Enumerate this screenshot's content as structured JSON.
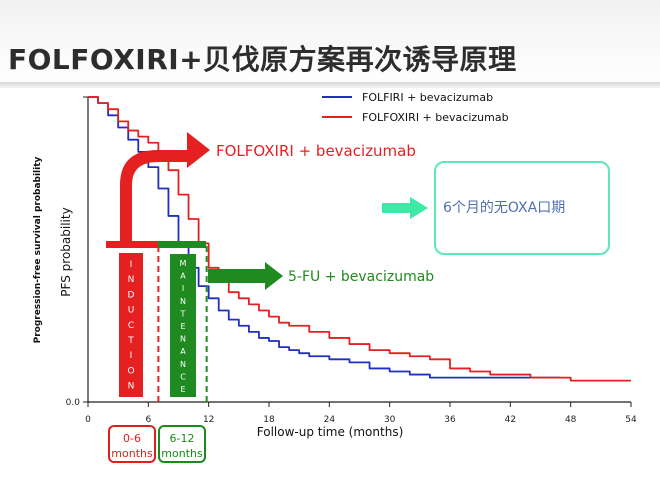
{
  "slide": {
    "title": "FOLFOXIRI+贝伐原方案再次诱导原理"
  },
  "chart_data": {
    "type": "line",
    "xlabel": "Follow-up time (months)",
    "ylabel": "PFS probability",
    "ylabel_inner": "Progression-free survival probability",
    "xlim": [
      0,
      54
    ],
    "ylim": [
      0,
      1
    ],
    "xticks": [
      0,
      6,
      12,
      18,
      24,
      30,
      36,
      42,
      48,
      54
    ],
    "yticks": [
      {
        "value": 0,
        "label": "0.0"
      },
      {
        "value": 1,
        "label": ""
      }
    ],
    "grid": false,
    "legend_position": "top-right",
    "series": [
      {
        "name": "FOLFIRI + bevacizumab",
        "color": "#1f2fbf",
        "x": [
          0,
          1,
          2,
          3,
          4,
          5,
          6,
          7,
          8,
          9,
          10,
          11,
          12,
          13,
          14,
          15,
          16,
          17,
          18,
          19,
          20,
          21,
          22,
          24,
          26,
          28,
          30,
          32,
          34,
          36,
          38,
          40,
          42,
          44,
          47
        ],
        "y": [
          1.0,
          0.98,
          0.94,
          0.9,
          0.86,
          0.82,
          0.77,
          0.7,
          0.61,
          0.52,
          0.44,
          0.38,
          0.34,
          0.3,
          0.27,
          0.25,
          0.23,
          0.21,
          0.2,
          0.18,
          0.17,
          0.16,
          0.15,
          0.14,
          0.13,
          0.11,
          0.1,
          0.09,
          0.08,
          0.08,
          0.08,
          0.08,
          0.08,
          0.08,
          0.08
        ]
      },
      {
        "name": "FOLFOXIRI + bevacizumab",
        "color": "#e52020",
        "x": [
          0,
          1,
          2,
          3,
          4,
          5,
          6,
          7,
          8,
          9,
          10,
          11,
          12,
          13,
          14,
          15,
          16,
          17,
          18,
          19,
          20,
          22,
          24,
          26,
          28,
          30,
          32,
          34,
          36,
          38,
          40,
          44,
          48,
          52,
          54
        ],
        "y": [
          1.0,
          0.98,
          0.96,
          0.92,
          0.89,
          0.87,
          0.85,
          0.82,
          0.76,
          0.68,
          0.6,
          0.52,
          0.44,
          0.4,
          0.36,
          0.34,
          0.32,
          0.3,
          0.28,
          0.26,
          0.25,
          0.23,
          0.21,
          0.19,
          0.17,
          0.16,
          0.15,
          0.14,
          0.11,
          0.1,
          0.09,
          0.08,
          0.07,
          0.07,
          0.07
        ]
      }
    ]
  },
  "annotations": {
    "arrow_induction_label": "FOLFOXIRI + bevacizumab",
    "arrow_maint_label": "5-FU + bevacizumab",
    "induction_letters": [
      "I",
      "N",
      "D",
      "U",
      "C",
      "T",
      "I",
      "O",
      "N"
    ],
    "maint_letters": [
      "M",
      "A",
      "I",
      "N",
      "T",
      "E",
      "N",
      "A",
      "N",
      "C",
      "E"
    ],
    "info_box_text": "6个月的无OXA口期",
    "phase_induction": [
      "0-6",
      "months"
    ],
    "phase_maint": [
      "6-12",
      "months"
    ]
  },
  "colors": {
    "red": "#e52020",
    "green": "#1f8a1f",
    "arrow_mint": "#3ee8a6",
    "box_border": "#5ee7b7"
  }
}
